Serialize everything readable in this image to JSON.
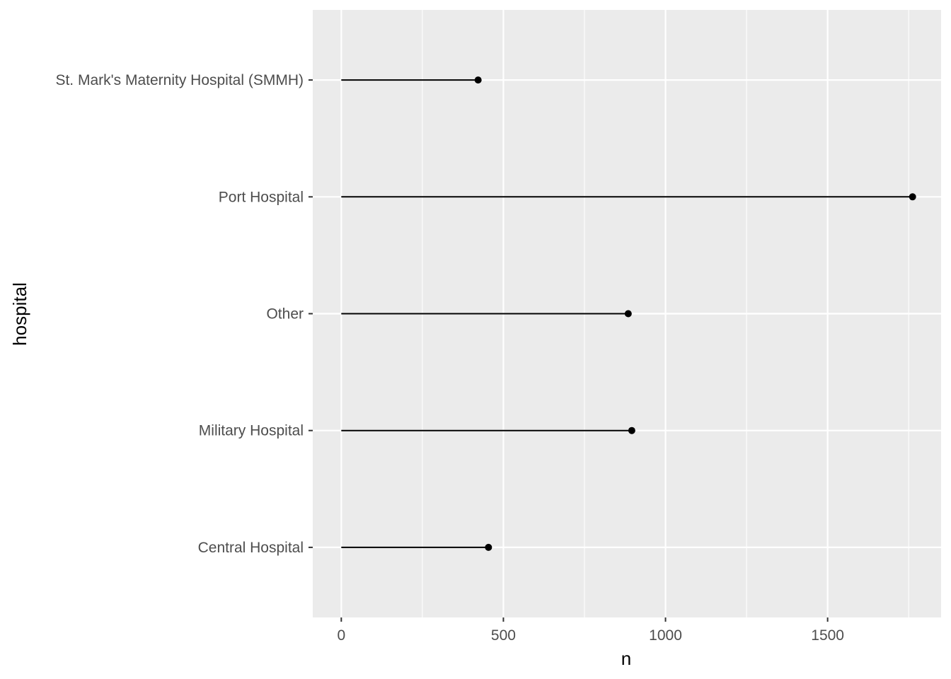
{
  "chart_data": {
    "type": "lollipop",
    "orientation": "horizontal",
    "xlabel": "n",
    "ylabel": "hospital",
    "xlim": [
      -88,
      1850
    ],
    "x_ticks": [
      0,
      500,
      1000,
      1500
    ],
    "x_minor_ticks": [
      250,
      750,
      1250,
      1750
    ],
    "categories": [
      "St. Mark's Maternity Hospital (SMMH)",
      "Port Hospital",
      "Other",
      "Military Hospital",
      "Central Hospital"
    ],
    "values": [
      422,
      1762,
      885,
      896,
      454
    ],
    "grid": true,
    "legend": "none",
    "colors": {
      "panel_background": "#ebebeb",
      "grid": "#ffffff",
      "segment": "#000000",
      "point": "#000000",
      "tick_text": "#4d4d4d",
      "axis_title": "#000000"
    }
  }
}
